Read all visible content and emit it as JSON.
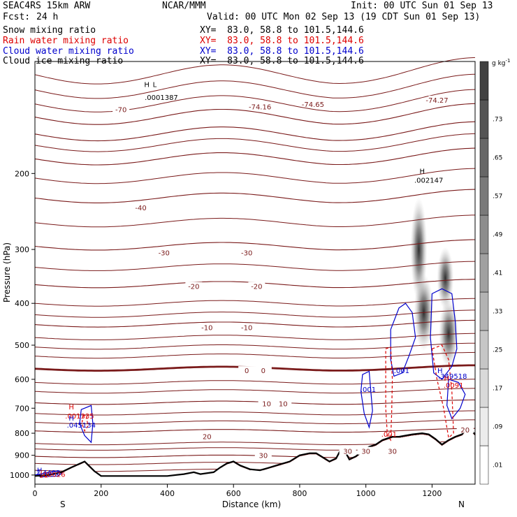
{
  "header": {
    "model": "SEAC4RS 15km ARW",
    "org": "NCAR/MMM",
    "init": "Init: 00 UTC Sun 01 Sep 13",
    "fcst_label": "Fcst:",
    "fcst_value": "24 h",
    "valid": "Valid: 00 UTC Mon 02 Sep 13 (19 CDT Sun 01 Sep 13)"
  },
  "fields": [
    {
      "name": "Snow mixing ratio",
      "xy": "XY=  83.0, 58.8 to 101.5,144.6",
      "color": "#000000"
    },
    {
      "name": "Rain water mixing ratio",
      "xy": "XY=  83.0, 58.8 to 101.5,144.6",
      "color": "#dd0000"
    },
    {
      "name": "Cloud water mixing ratio",
      "xy": "XY=  83.0, 58.8 to 101.5,144.6",
      "color": "#0000cc"
    },
    {
      "name": "Cloud ice mixing ratio",
      "xy": "XY=  83.0, 58.8 to 101.5,144.6",
      "color": "#000000"
    }
  ],
  "chart_data": {
    "type": "cross-section contour",
    "xlabel": "Distance (km)",
    "ylabel": "Pressure (hPa)",
    "xlim": [
      0,
      1330
    ],
    "ylim": [
      1050,
      110
    ],
    "y_scale": "log",
    "xticks": [
      0,
      200,
      400,
      600,
      800,
      1000,
      1200
    ],
    "yticks": [
      200,
      300,
      400,
      500,
      600,
      700,
      800,
      900,
      1000
    ],
    "x_end_labels": {
      "left": "S",
      "right": "N"
    },
    "colorbar": {
      "unit": "g kg",
      "unit_exp": "-1",
      "levels": [
        0.01,
        0.09,
        0.17,
        0.25,
        0.33,
        0.41,
        0.49,
        0.57,
        0.65,
        0.73
      ],
      "tick_labels": [
        ".01",
        ".09",
        ".17",
        ".25",
        ".33",
        ".41",
        ".49",
        ".57",
        ".65",
        ".73"
      ]
    },
    "temperature_contours_C": [
      -70,
      -60,
      -50,
      -40,
      -30,
      -20,
      -10,
      0,
      10,
      20,
      30
    ],
    "temperature_labels": [
      {
        "text": "-70",
        "x": 260,
        "p": 142
      },
      {
        "text": "-74.16",
        "x": 680,
        "p": 140
      },
      {
        "text": "-74.65",
        "x": 840,
        "p": 138
      },
      {
        "text": "-74.27",
        "x": 1215,
        "p": 135
      },
      {
        "text": "-40",
        "x": 320,
        "p": 240
      },
      {
        "text": "-30",
        "x": 390,
        "p": 305
      },
      {
        "text": "-30",
        "x": 640,
        "p": 305
      },
      {
        "text": "-20",
        "x": 480,
        "p": 365
      },
      {
        "text": "-20",
        "x": 670,
        "p": 365
      },
      {
        "text": "-10",
        "x": 520,
        "p": 455
      },
      {
        "text": "-10",
        "x": 640,
        "p": 455
      },
      {
        "text": "0",
        "x": 640,
        "p": 572
      },
      {
        "text": "0",
        "x": 690,
        "p": 572
      },
      {
        "text": "10",
        "x": 700,
        "p": 683
      },
      {
        "text": "10",
        "x": 750,
        "p": 683
      },
      {
        "text": "20",
        "x": 520,
        "p": 813
      },
      {
        "text": "20",
        "x": 1300,
        "p": 785
      },
      {
        "text": "30",
        "x": 690,
        "p": 900
      },
      {
        "text": "30",
        "x": 945,
        "p": 880
      },
      {
        "text": "30",
        "x": 1000,
        "p": 880
      },
      {
        "text": "30",
        "x": 1080,
        "p": 880
      }
    ],
    "extrema_labels": [
      {
        "text": "H",
        "x": 338,
        "p": 126,
        "color": "#000000"
      },
      {
        "text": "L",
        "x": 362,
        "p": 126,
        "color": "#000000"
      },
      {
        "text": ".0001387",
        "x": 382,
        "p": 135,
        "color": "#000000"
      },
      {
        "text": "H",
        "x": 1170,
        "p": 200,
        "color": "#000000"
      },
      {
        "text": ".002147",
        "x": 1190,
        "p": 210,
        "color": "#000000"
      },
      {
        "text": "H",
        "x": 110,
        "p": 705,
        "color": "#dd0000"
      },
      {
        "text": ".001335",
        "x": 135,
        "p": 740,
        "color": "#dd0000"
      },
      {
        "text": "H",
        "x": 110,
        "p": 748,
        "color": "#0000cc"
      },
      {
        "text": ".045134",
        "x": 140,
        "p": 776,
        "color": "#0000cc"
      },
      {
        "text": ".001",
        "x": 1007,
        "p": 642,
        "color": "#0000cc"
      },
      {
        "text": ".001",
        "x": 1108,
        "p": 580,
        "color": "#0000cc"
      },
      {
        "text": "H",
        "x": 1224,
        "p": 580,
        "color": "#0000cc"
      },
      {
        "text": ".349518",
        "x": 1262,
        "p": 598,
        "color": "#0000cc"
      },
      {
        "text": "H",
        "x": 1244,
        "p": 605,
        "color": "#dd0000"
      },
      {
        "text": ".0091",
        "x": 1265,
        "p": 628,
        "color": "#dd0000"
      },
      {
        "text": ".001",
        "x": 1070,
        "p": 815,
        "color": "#dd0000"
      },
      {
        "text": "H",
        "x": 14,
        "p": 988,
        "color": "#0000cc"
      },
      {
        "text": "L",
        "x": 22,
        "p": 1003,
        "color": "#dd0000"
      },
      {
        "text": "2.4402",
        "x": 40,
        "p": 1000,
        "color": "#0000cc"
      },
      {
        "text": ".00026",
        "x": 55,
        "p": 1010,
        "color": "#dd0000"
      }
    ],
    "terrain_surface_hPa": {
      "x": [
        0,
        40,
        80,
        110,
        150,
        180,
        200,
        250,
        300,
        350,
        400,
        450,
        480,
        500,
        540,
        560,
        580,
        600,
        620,
        650,
        680,
        700,
        740,
        770,
        800,
        830,
        850,
        870,
        890,
        910,
        920,
        940,
        950,
        970,
        990,
        1010,
        1030,
        1050,
        1070,
        1080,
        1100,
        1140,
        1170,
        1190,
        1210,
        1230,
        1250,
        1270,
        1290,
        1310,
        1320,
        1330
      ],
      "p": [
        1005,
        1000,
        985,
        960,
        930,
        980,
        1005,
        1005,
        1005,
        1005,
        1005,
        995,
        985,
        995,
        985,
        960,
        940,
        930,
        950,
        970,
        975,
        965,
        945,
        930,
        900,
        890,
        890,
        910,
        930,
        915,
        885,
        890,
        920,
        905,
        880,
        860,
        850,
        830,
        820,
        815,
        815,
        805,
        800,
        805,
        825,
        850,
        830,
        815,
        805,
        775,
        790,
        805
      ]
    },
    "snow_max_gkg": 0.73
  }
}
